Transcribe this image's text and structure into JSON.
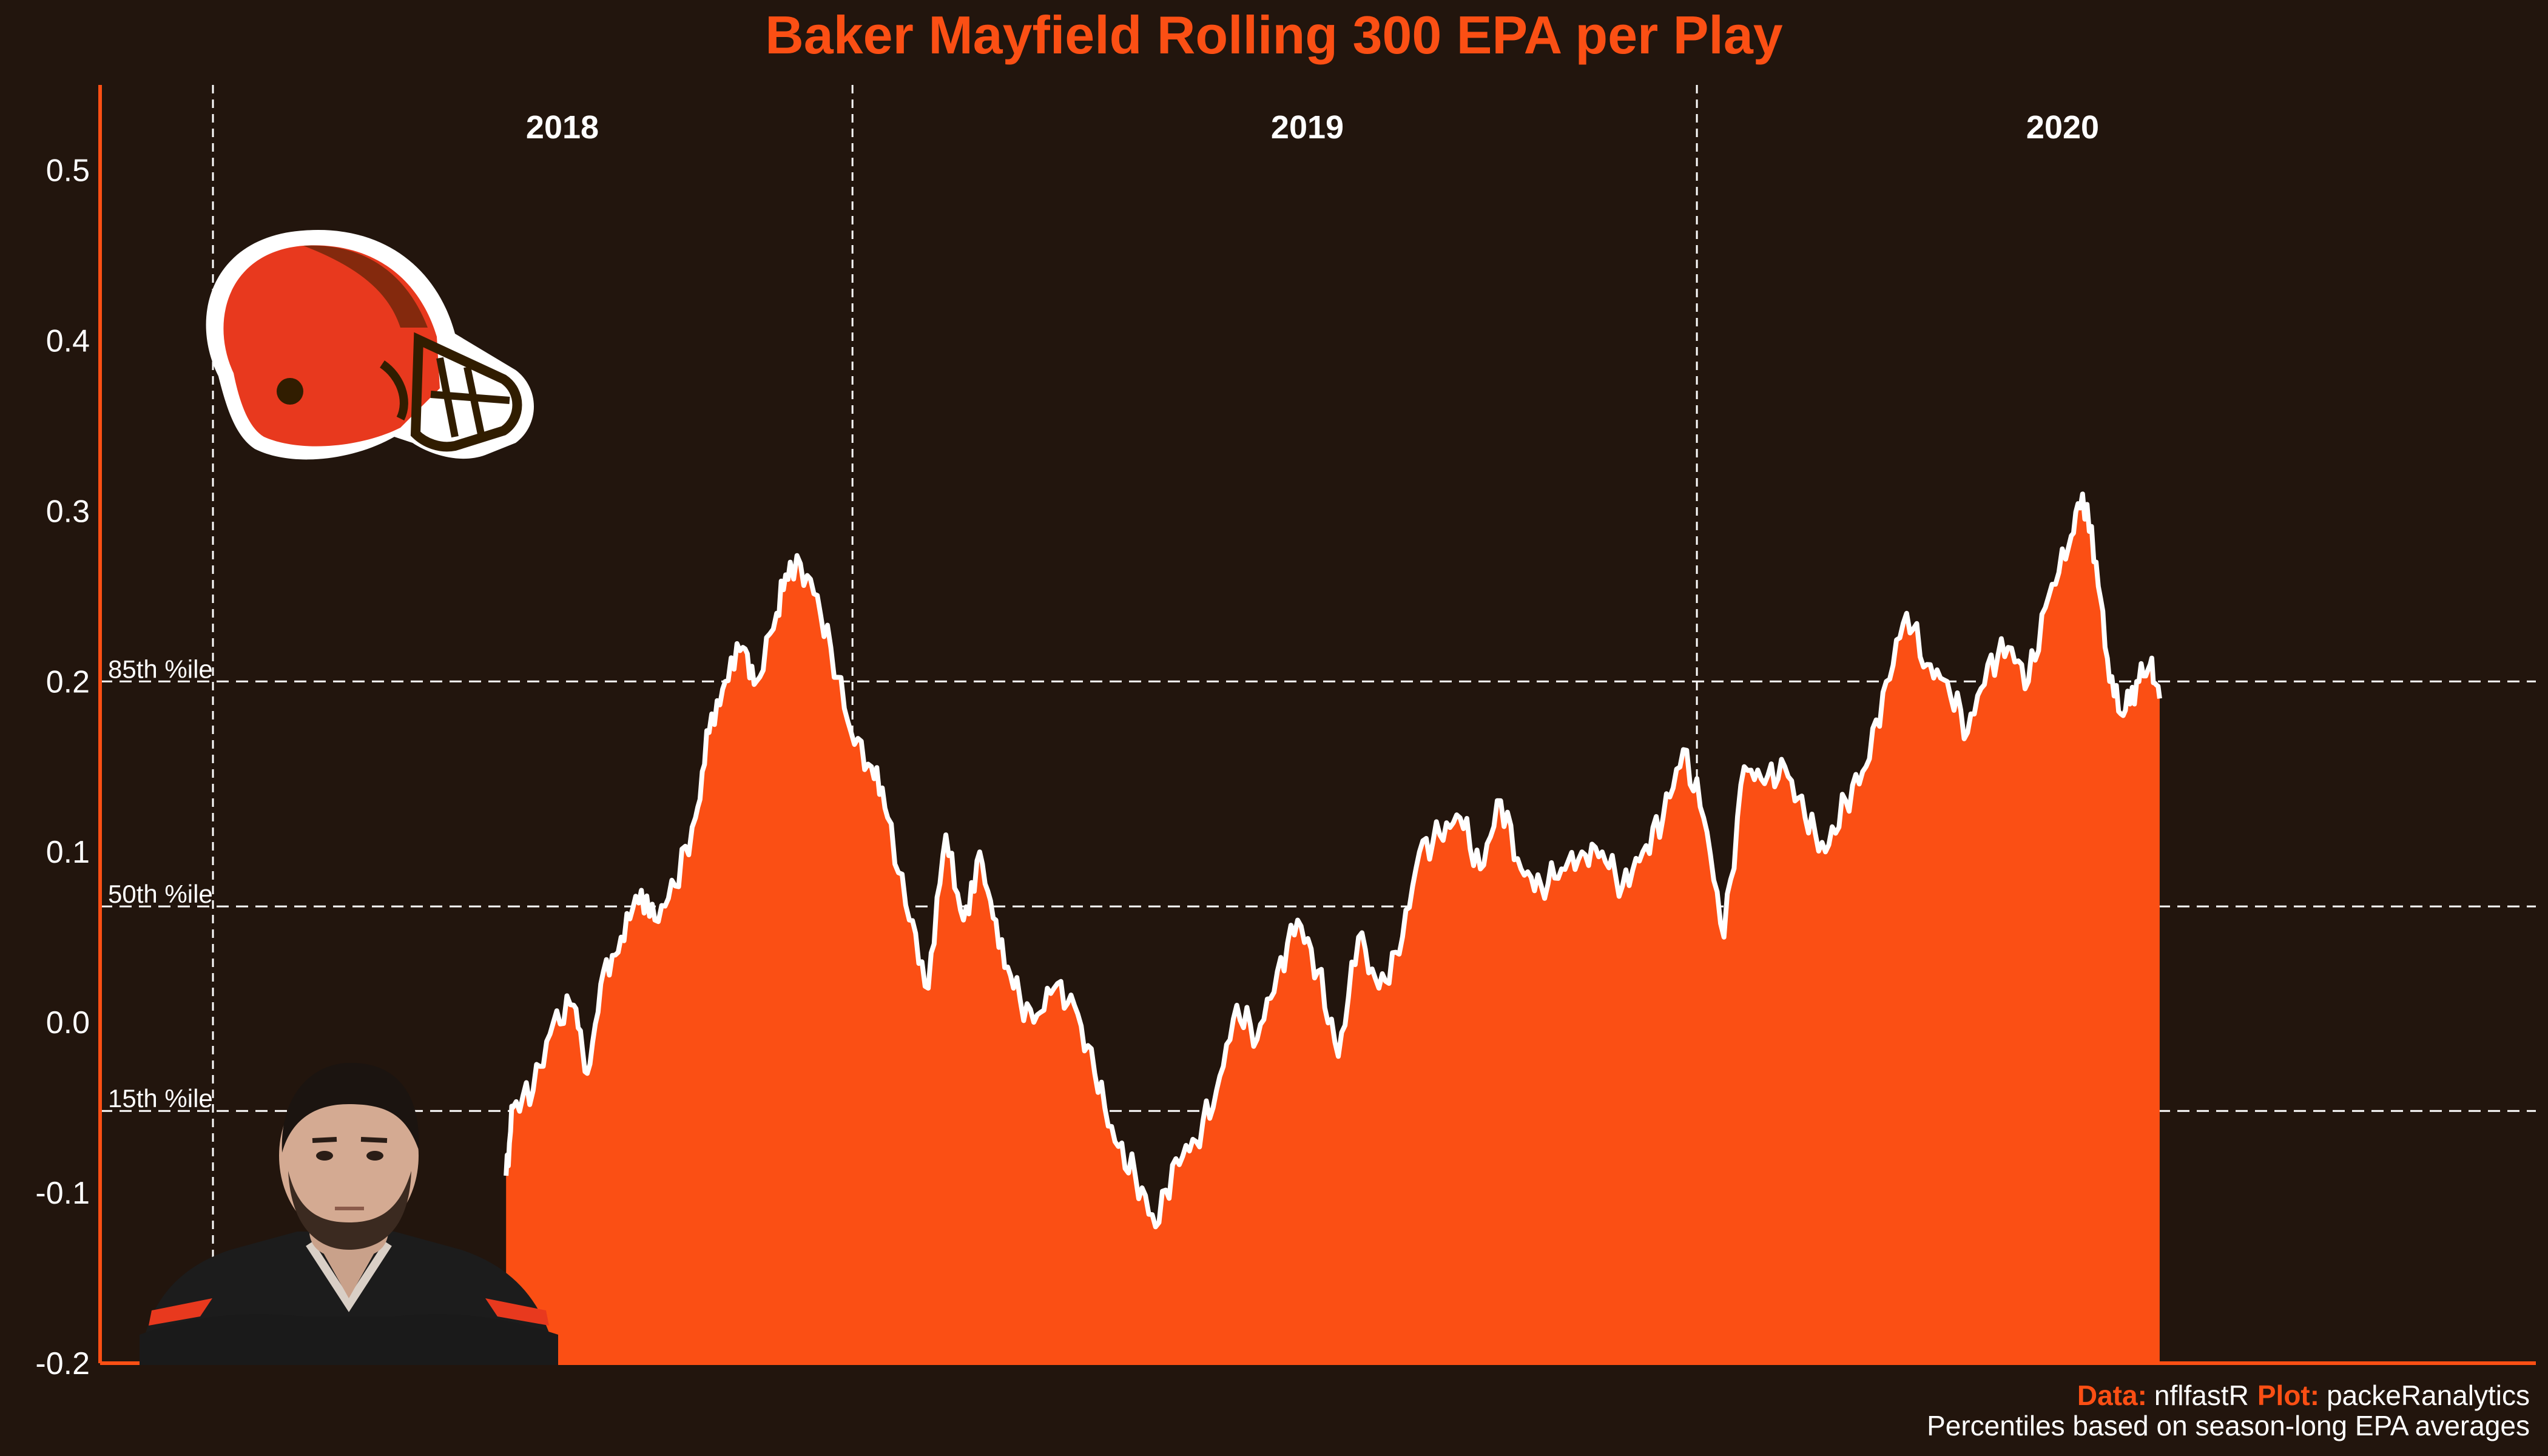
{
  "colors": {
    "background": "#22150d",
    "accent": "#fb4f14",
    "fill": "#fb4f14",
    "line": "#ffffff",
    "helmet": "#e8391e",
    "facemask": "#311d00"
  },
  "icons": {
    "team_logo": "helmet-icon",
    "player_photo": "player-headshot-icon"
  },
  "chart_data": {
    "type": "area",
    "title": "Baker Mayfield Rolling 300 EPA per Play",
    "xlabel": "",
    "ylabel": "",
    "ylim": [
      -0.2,
      0.55
    ],
    "yticks": [
      "0.5",
      "0.4",
      "0.3",
      "0.2",
      "0.1",
      "0.0",
      "-0.1",
      "-0.2"
    ],
    "grid": false,
    "play_range": [
      0,
      1800
    ],
    "series_start_play": 300,
    "season_breaks": [
      0,
      556,
      1180
    ],
    "seasons": [
      {
        "label": "2018",
        "center_play": 278
      },
      {
        "label": "2019",
        "center_play": 868
      },
      {
        "label": "2020",
        "center_play": 1467
      }
    ],
    "percentiles": [
      {
        "label": "85th %ile",
        "value": 0.2
      },
      {
        "label": "50th %ile",
        "value": 0.068
      },
      {
        "label": "15th %ile",
        "value": -0.052
      }
    ],
    "series": [
      {
        "points": [
          [
            300,
            -0.09
          ],
          [
            305,
            -0.05
          ],
          [
            320,
            -0.04
          ],
          [
            335,
            0.0
          ],
          [
            350,
            0.01
          ],
          [
            360,
            -0.03
          ],
          [
            372,
            0.03
          ],
          [
            385,
            0.05
          ],
          [
            398,
            0.07
          ],
          [
            410,
            0.06
          ],
          [
            425,
            0.08
          ],
          [
            440,
            0.12
          ],
          [
            450,
            0.17
          ],
          [
            462,
            0.2
          ],
          [
            475,
            0.22
          ],
          [
            485,
            0.2
          ],
          [
            500,
            0.24
          ],
          [
            510,
            0.27
          ],
          [
            525,
            0.26
          ],
          [
            540,
            0.22
          ],
          [
            555,
            0.17
          ],
          [
            570,
            0.15
          ],
          [
            582,
            0.12
          ],
          [
            598,
            0.06
          ],
          [
            612,
            0.02
          ],
          [
            625,
            0.11
          ],
          [
            638,
            0.06
          ],
          [
            650,
            0.1
          ],
          [
            662,
            0.06
          ],
          [
            675,
            0.02
          ],
          [
            690,
            0.0
          ],
          [
            705,
            0.02
          ],
          [
            720,
            0.01
          ],
          [
            735,
            -0.03
          ],
          [
            750,
            -0.07
          ],
          [
            765,
            -0.09
          ],
          [
            780,
            -0.12
          ],
          [
            795,
            -0.08
          ],
          [
            810,
            -0.07
          ],
          [
            825,
            -0.04
          ],
          [
            840,
            0.01
          ],
          [
            855,
            -0.01
          ],
          [
            870,
            0.03
          ],
          [
            885,
            0.06
          ],
          [
            900,
            0.03
          ],
          [
            915,
            -0.02
          ],
          [
            930,
            0.05
          ],
          [
            945,
            0.02
          ],
          [
            960,
            0.04
          ],
          [
            975,
            0.1
          ],
          [
            990,
            0.11
          ],
          [
            1005,
            0.12
          ],
          [
            1020,
            0.09
          ],
          [
            1035,
            0.13
          ],
          [
            1050,
            0.09
          ],
          [
            1065,
            0.08
          ],
          [
            1080,
            0.09
          ],
          [
            1095,
            0.1
          ],
          [
            1110,
            0.1
          ],
          [
            1125,
            0.08
          ],
          [
            1140,
            0.1
          ],
          [
            1155,
            0.12
          ],
          [
            1170,
            0.16
          ],
          [
            1185,
            0.12
          ],
          [
            1200,
            0.05
          ],
          [
            1215,
            0.15
          ],
          [
            1230,
            0.14
          ],
          [
            1245,
            0.15
          ],
          [
            1260,
            0.12
          ],
          [
            1275,
            0.1
          ],
          [
            1290,
            0.13
          ],
          [
            1305,
            0.15
          ],
          [
            1320,
            0.2
          ],
          [
            1335,
            0.24
          ],
          [
            1350,
            0.21
          ],
          [
            1365,
            0.2
          ],
          [
            1380,
            0.17
          ],
          [
            1395,
            0.21
          ],
          [
            1410,
            0.22
          ],
          [
            1425,
            0.2
          ],
          [
            1440,
            0.25
          ],
          [
            1455,
            0.28
          ],
          [
            1465,
            0.31
          ],
          [
            1475,
            0.27
          ],
          [
            1485,
            0.2
          ],
          [
            1495,
            0.18
          ],
          [
            1505,
            0.2
          ],
          [
            1515,
            0.21
          ],
          [
            1522,
            0.19
          ]
        ]
      }
    ],
    "source_label": "Data:",
    "source_value": "nflfastR",
    "plot_label": "Plot:",
    "plot_value": "packeRanalytics",
    "note": "Percentiles based on season-long EPA averages"
  }
}
